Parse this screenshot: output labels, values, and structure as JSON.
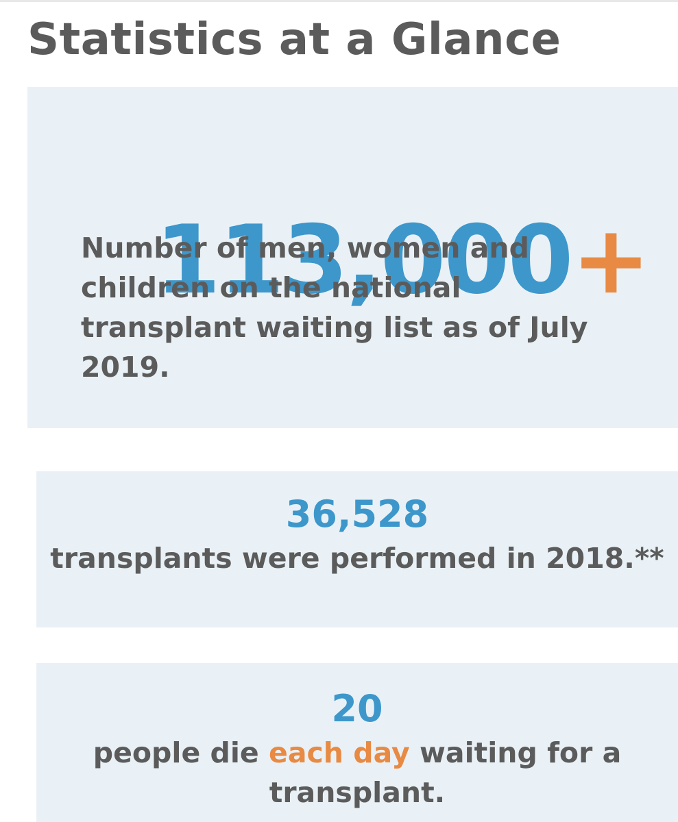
{
  "page_title": "Statistics at a Glance",
  "colors": {
    "blue": "#3d97cb",
    "orange": "#e88a43",
    "text_gray": "#5b5b5b",
    "card_background": "#e9f1f6"
  },
  "stats": [
    {
      "number": "113,000",
      "number_suffix": "+",
      "description": "Number of men, women and children on the national transplant waiting list as of July 2019."
    },
    {
      "number": "36,528",
      "description": "transplants were performed in 2018.**"
    },
    {
      "number": "20",
      "description_before": "people die ",
      "description_highlight": "each day",
      "description_after": " waiting for a transplant."
    }
  ]
}
